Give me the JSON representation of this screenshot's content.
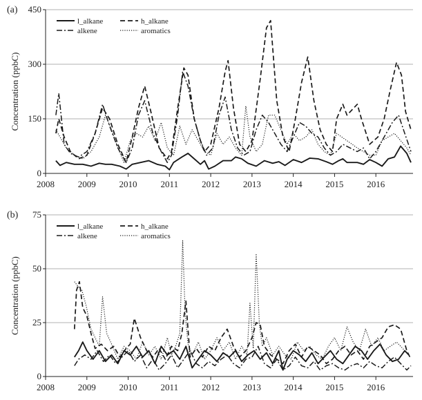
{
  "chart_data": [
    {
      "type": "line",
      "panel_label": "(a)",
      "ylabel": "Concentration (ppbC)",
      "xlim": [
        2008,
        2016.9
      ],
      "ylim": [
        0,
        450
      ],
      "yticks": [
        0,
        150,
        300,
        450
      ],
      "xticks": [
        2008,
        2009,
        2010,
        2011,
        2012,
        2013,
        2014,
        2015,
        2016
      ],
      "grid": "horizontal",
      "legend_position": "top-left",
      "series": [
        {
          "name": "l_alkane",
          "style": "solid",
          "x": [
            2008.25,
            2008.35,
            2008.5,
            2008.7,
            2008.9,
            2009.1,
            2009.3,
            2009.45,
            2009.6,
            2009.8,
            2009.95,
            2010.1,
            2010.3,
            2010.5,
            2010.7,
            2010.9,
            2011.0,
            2011.1,
            2011.3,
            2011.45,
            2011.6,
            2011.75,
            2011.85,
            2011.95,
            2012.1,
            2012.3,
            2012.5,
            2012.6,
            2012.75,
            2012.9,
            2013.1,
            2013.3,
            2013.5,
            2013.65,
            2013.8,
            2014.0,
            2014.2,
            2014.4,
            2014.6,
            2014.8,
            2014.95,
            2015.1,
            2015.2,
            2015.3,
            2015.55,
            2015.7,
            2015.85,
            2016.0,
            2016.15,
            2016.3,
            2016.45,
            2016.6,
            2016.75,
            2016.85
          ],
          "values": [
            35,
            22,
            30,
            25,
            25,
            20,
            28,
            25,
            25,
            20,
            12,
            25,
            30,
            35,
            25,
            20,
            10,
            30,
            45,
            55,
            40,
            25,
            35,
            12,
            20,
            35,
            35,
            45,
            40,
            28,
            20,
            35,
            28,
            32,
            22,
            38,
            30,
            42,
            40,
            32,
            25,
            35,
            40,
            30,
            30,
            25,
            38,
            30,
            20,
            40,
            45,
            75,
            55,
            30
          ]
        },
        {
          "name": "h_alkane",
          "style": "dashed",
          "x": [
            2008.25,
            2008.32,
            2008.45,
            2008.6,
            2008.8,
            2009.0,
            2009.2,
            2009.38,
            2009.55,
            2009.75,
            2009.95,
            2010.1,
            2010.25,
            2010.4,
            2010.55,
            2010.75,
            2010.95,
            2011.05,
            2011.2,
            2011.35,
            2011.45,
            2011.6,
            2011.75,
            2011.85,
            2012.0,
            2012.2,
            2012.35,
            2012.42,
            2012.55,
            2012.7,
            2012.85,
            2013.0,
            2013.2,
            2013.35,
            2013.45,
            2013.6,
            2013.75,
            2013.9,
            2014.05,
            2014.2,
            2014.35,
            2014.5,
            2014.65,
            2014.8,
            2014.95,
            2015.05,
            2015.2,
            2015.3,
            2015.55,
            2015.65,
            2015.85,
            2016.05,
            2016.2,
            2016.35,
            2016.5,
            2016.62,
            2016.72,
            2016.85
          ],
          "values": [
            110,
            150,
            100,
            60,
            40,
            50,
            110,
            180,
            150,
            80,
            30,
            100,
            180,
            240,
            170,
            70,
            40,
            60,
            180,
            290,
            270,
            150,
            90,
            60,
            80,
            180,
            280,
            310,
            180,
            80,
            60,
            90,
            260,
            400,
            420,
            200,
            100,
            60,
            150,
            250,
            320,
            200,
            120,
            80,
            60,
            150,
            190,
            160,
            190,
            150,
            80,
            100,
            150,
            230,
            305,
            270,
            170,
            120
          ]
        },
        {
          "name": "alkene",
          "style": "dashdot",
          "x": [
            2008.25,
            2008.32,
            2008.45,
            2008.6,
            2008.8,
            2009.0,
            2009.2,
            2009.38,
            2009.55,
            2009.75,
            2009.95,
            2010.1,
            2010.25,
            2010.4,
            2010.6,
            2010.8,
            2010.95,
            2011.05,
            2011.2,
            2011.32,
            2011.45,
            2011.6,
            2011.75,
            2011.9,
            2012.05,
            2012.2,
            2012.35,
            2012.5,
            2012.65,
            2012.8,
            2012.95,
            2013.1,
            2013.25,
            2013.4,
            2013.55,
            2013.7,
            2013.85,
            2014.0,
            2014.15,
            2014.3,
            2014.45,
            2014.6,
            2014.75,
            2014.9,
            2015.05,
            2015.2,
            2015.55,
            2015.7,
            2015.85,
            2016.0,
            2016.2,
            2016.4,
            2016.55,
            2016.7,
            2016.85
          ],
          "values": [
            160,
            220,
            80,
            55,
            45,
            60,
            110,
            190,
            130,
            70,
            30,
            70,
            160,
            200,
            110,
            60,
            30,
            50,
            160,
            280,
            240,
            150,
            90,
            50,
            70,
            160,
            210,
            120,
            70,
            50,
            60,
            120,
            160,
            140,
            110,
            80,
            60,
            100,
            140,
            130,
            110,
            100,
            70,
            50,
            60,
            80,
            60,
            70,
            40,
            60,
            100,
            140,
            160,
            110,
            60
          ]
        },
        {
          "name": "aromatics",
          "style": "dotted",
          "x": [
            2008.25,
            2008.35,
            2008.5,
            2008.7,
            2008.9,
            2009.1,
            2009.3,
            2009.45,
            2009.6,
            2009.75,
            2009.9,
            2010.05,
            2010.2,
            2010.35,
            2010.5,
            2010.65,
            2010.8,
            2010.95,
            2011.1,
            2011.25,
            2011.4,
            2011.55,
            2011.7,
            2011.85,
            2012.0,
            2012.15,
            2012.3,
            2012.45,
            2012.6,
            2012.75,
            2012.85,
            2012.95,
            2013.1,
            2013.25,
            2013.4,
            2013.55,
            2013.7,
            2013.85,
            2014.0,
            2014.15,
            2014.3,
            2014.45,
            2014.6,
            2014.75,
            2014.9,
            2015.05,
            2015.55,
            2015.7,
            2015.85,
            2016.0,
            2016.15,
            2016.3,
            2016.45,
            2016.6,
            2016.75,
            2016.85
          ],
          "values": [
            120,
            100,
            70,
            50,
            40,
            60,
            100,
            160,
            120,
            70,
            30,
            90,
            110,
            100,
            130,
            90,
            140,
            70,
            50,
            130,
            80,
            120,
            90,
            60,
            50,
            110,
            80,
            100,
            70,
            50,
            185,
            100,
            60,
            80,
            160,
            160,
            120,
            80,
            110,
            90,
            100,
            120,
            80,
            60,
            50,
            110,
            70,
            60,
            50,
            50,
            90,
            100,
            110,
            90,
            70,
            50
          ]
        }
      ]
    },
    {
      "type": "line",
      "panel_label": "(b)",
      "ylabel": "Concentration (ppbC)",
      "xlim": [
        2008,
        2016.9
      ],
      "ylim": [
        0,
        75
      ],
      "yticks": [
        0,
        25,
        50,
        75
      ],
      "xticks": [
        2008,
        2009,
        2010,
        2011,
        2012,
        2013,
        2014,
        2015,
        2016
      ],
      "grid": "horizontal",
      "legend_position": "top-left",
      "series": [
        {
          "name": "l_alkane",
          "style": "solid",
          "x": [
            2008.7,
            2008.8,
            2008.9,
            2009.0,
            2009.15,
            2009.3,
            2009.45,
            2009.6,
            2009.75,
            2009.9,
            2010.05,
            2010.2,
            2010.35,
            2010.5,
            2010.65,
            2010.8,
            2010.95,
            2011.1,
            2011.25,
            2011.4,
            2011.55,
            2011.7,
            2011.85,
            2012.0,
            2012.15,
            2012.3,
            2012.45,
            2012.6,
            2012.75,
            2012.9,
            2013.05,
            2013.2,
            2013.35,
            2013.5,
            2013.65,
            2013.75,
            2013.85,
            2014.0,
            2014.15,
            2014.3,
            2014.45,
            2014.6,
            2014.75,
            2014.9,
            2015.05,
            2015.2,
            2015.35,
            2015.5,
            2015.65,
            2015.8,
            2015.95,
            2016.1,
            2016.25,
            2016.4,
            2016.55,
            2016.7,
            2016.8
          ],
          "values": [
            9,
            12,
            16,
            12,
            8,
            12,
            7,
            10,
            6,
            12,
            10,
            14,
            9,
            12,
            6,
            14,
            10,
            12,
            8,
            14,
            4,
            8,
            12,
            10,
            7,
            11,
            9,
            12,
            7,
            10,
            12,
            8,
            11,
            6,
            12,
            3,
            8,
            12,
            10,
            7,
            11,
            6,
            9,
            12,
            8,
            6,
            10,
            14,
            12,
            8,
            12,
            15,
            10,
            7,
            8,
            12,
            10
          ]
        },
        {
          "name": "h_alkane",
          "style": "dashed",
          "x": [
            2008.7,
            2008.75,
            2008.82,
            2008.9,
            2009.0,
            2009.1,
            2009.2,
            2009.35,
            2009.5,
            2009.65,
            2009.8,
            2009.95,
            2010.05,
            2010.15,
            2010.3,
            2010.45,
            2010.6,
            2010.75,
            2010.9,
            2011.05,
            2011.2,
            2011.3,
            2011.4,
            2011.5,
            2011.65,
            2011.8,
            2011.95,
            2012.1,
            2012.25,
            2012.4,
            2012.55,
            2012.7,
            2012.85,
            2013.0,
            2013.1,
            2013.2,
            2013.3,
            2013.45,
            2013.6,
            2013.75,
            2013.9,
            2014.05,
            2014.2,
            2014.35,
            2014.5,
            2014.65,
            2014.8,
            2014.95,
            2015.1,
            2015.25,
            2015.4,
            2015.55,
            2015.7,
            2015.85,
            2016.0,
            2016.15,
            2016.3,
            2016.45,
            2016.6,
            2016.75,
            2016.85
          ],
          "values": [
            22,
            40,
            44,
            32,
            28,
            20,
            13,
            15,
            12,
            14,
            9,
            13,
            15,
            27,
            18,
            12,
            9,
            13,
            8,
            14,
            12,
            20,
            35,
            9,
            13,
            9,
            14,
            12,
            18,
            22,
            14,
            9,
            12,
            18,
            25,
            24,
            14,
            10,
            8,
            6,
            12,
            15,
            9,
            14,
            12,
            10,
            6,
            8,
            12,
            14,
            10,
            12,
            8,
            14,
            16,
            18,
            23,
            24,
            22,
            12,
            8
          ]
        },
        {
          "name": "alkene",
          "style": "dashdot",
          "x": [
            2008.7,
            2008.8,
            2008.95,
            2009.1,
            2009.25,
            2009.4,
            2009.55,
            2009.7,
            2009.85,
            2010.0,
            2010.15,
            2010.3,
            2010.45,
            2010.6,
            2010.75,
            2010.9,
            2011.05,
            2011.2,
            2011.35,
            2011.5,
            2011.65,
            2011.8,
            2011.95,
            2012.1,
            2012.25,
            2012.4,
            2012.55,
            2012.7,
            2012.85,
            2013.0,
            2013.15,
            2013.3,
            2013.45,
            2013.6,
            2013.75,
            2013.9,
            2014.05,
            2014.2,
            2014.35,
            2014.5,
            2014.65,
            2014.8,
            2014.95,
            2015.1,
            2015.25,
            2015.4,
            2015.55,
            2015.7,
            2015.85,
            2016.0,
            2016.15,
            2016.3,
            2016.45,
            2016.6,
            2016.75,
            2016.85
          ],
          "values": [
            5,
            8,
            10,
            8,
            12,
            7,
            10,
            6,
            9,
            12,
            7,
            10,
            4,
            8,
            3,
            6,
            10,
            4,
            8,
            12,
            6,
            4,
            7,
            5,
            8,
            10,
            6,
            4,
            8,
            9,
            14,
            6,
            4,
            8,
            3,
            5,
            9,
            5,
            4,
            7,
            3,
            5,
            6,
            4,
            3,
            5,
            6,
            4,
            7,
            5,
            4,
            7,
            9,
            6,
            3,
            5
          ]
        },
        {
          "name": "aromatics",
          "style": "dotted",
          "x": [
            2008.7,
            2008.78,
            2008.88,
            2008.98,
            2009.1,
            2009.2,
            2009.3,
            2009.38,
            2009.48,
            2009.6,
            2009.75,
            2009.9,
            2010.05,
            2010.2,
            2010.35,
            2010.5,
            2010.65,
            2010.8,
            2010.95,
            2011.05,
            2011.15,
            2011.25,
            2011.32,
            2011.38,
            2011.45,
            2011.55,
            2011.7,
            2011.85,
            2012.0,
            2012.15,
            2012.3,
            2012.45,
            2012.6,
            2012.75,
            2012.88,
            2012.95,
            2013.03,
            2013.1,
            2013.18,
            2013.25,
            2013.35,
            2013.5,
            2013.65,
            2013.8,
            2013.95,
            2014.1,
            2014.25,
            2014.4,
            2014.55,
            2014.7,
            2014.85,
            2015.0,
            2015.15,
            2015.3,
            2015.45,
            2015.6,
            2015.75,
            2015.9,
            2016.05,
            2016.2,
            2016.35,
            2016.5,
            2016.65,
            2016.8
          ],
          "values": [
            44,
            42,
            40,
            33,
            22,
            18,
            14,
            37,
            20,
            15,
            8,
            14,
            12,
            8,
            16,
            10,
            14,
            8,
            18,
            10,
            14,
            20,
            63,
            30,
            15,
            10,
            16,
            8,
            12,
            18,
            12,
            16,
            8,
            14,
            10,
            34,
            13,
            57,
            24,
            14,
            18,
            10,
            14,
            10,
            8,
            16,
            12,
            14,
            10,
            8,
            14,
            18,
            12,
            23,
            16,
            12,
            22,
            14,
            18,
            12,
            14,
            16,
            13,
            10
          ]
        }
      ]
    }
  ]
}
